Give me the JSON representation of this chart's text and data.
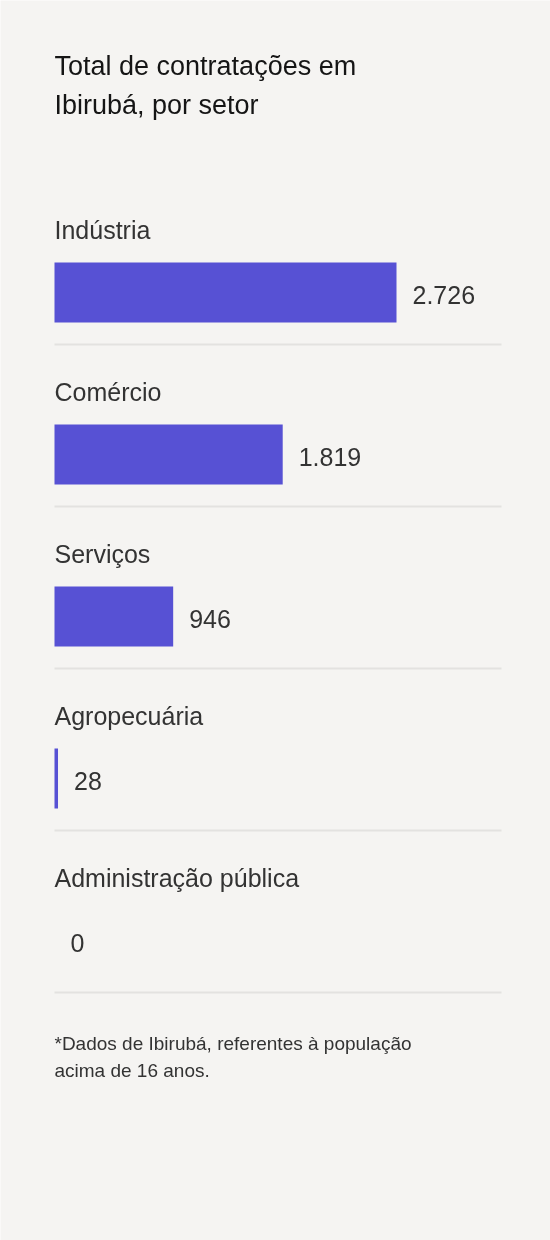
{
  "chart_data": {
    "type": "bar",
    "orientation": "horizontal",
    "title": "Total de contratações em Ibirubá, por setor",
    "categories": [
      "Indústria",
      "Comércio",
      "Serviços",
      "Agropecuária",
      "Administração pública"
    ],
    "values": [
      2726,
      1819,
      946,
      28,
      0
    ],
    "value_labels": [
      "2.726",
      "1.819",
      "946",
      "28",
      "0"
    ],
    "color": "#5751d4",
    "grid": "y",
    "annotations": [
      "*Dados de Ibirubá, referentes à população acima de 16 anos."
    ]
  }
}
